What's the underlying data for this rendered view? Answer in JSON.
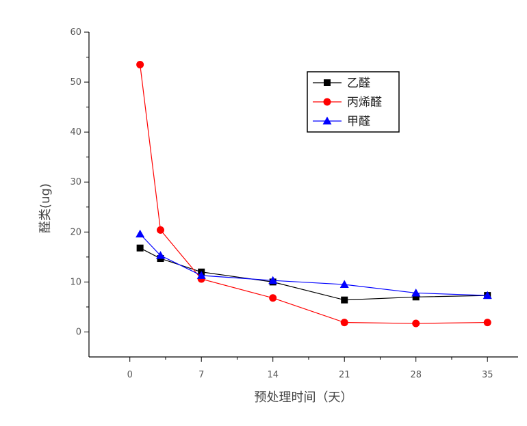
{
  "chart_data": {
    "type": "line",
    "title": "",
    "xlabel": "预处理时间（天）",
    "ylabel": "醛类(ug)",
    "xlim": [
      -4,
      38
    ],
    "ylim": [
      -5,
      60
    ],
    "x_ticks": [
      0,
      7,
      14,
      21,
      28,
      35
    ],
    "x_tick_labels": [
      "0",
      "7",
      "14",
      "21",
      "28",
      "35"
    ],
    "y_ticks": [
      0,
      10,
      20,
      30,
      40,
      50,
      60
    ],
    "y_tick_labels": [
      "0",
      "10",
      "20",
      "30",
      "40",
      "50",
      "60"
    ],
    "legend_position": "top-right",
    "grid": false,
    "series": [
      {
        "name": "乙醛",
        "color": "#000000",
        "marker": "square",
        "x": [
          1,
          3,
          7,
          14,
          21,
          28,
          35
        ],
        "y": [
          16.8,
          14.7,
          12.0,
          10.0,
          6.4,
          7.0,
          7.3
        ]
      },
      {
        "name": "丙烯醛",
        "color": "#ff0000",
        "marker": "circle",
        "x": [
          1,
          3,
          7,
          14,
          21,
          28,
          35
        ],
        "y": [
          53.5,
          20.4,
          10.6,
          6.8,
          1.9,
          1.7,
          1.9
        ]
      },
      {
        "name": "甲醛",
        "color": "#0000ff",
        "marker": "triangle",
        "x": [
          1,
          3,
          7,
          14,
          21,
          28,
          35
        ],
        "y": [
          19.6,
          15.3,
          11.3,
          10.3,
          9.5,
          7.8,
          7.3
        ]
      }
    ]
  }
}
